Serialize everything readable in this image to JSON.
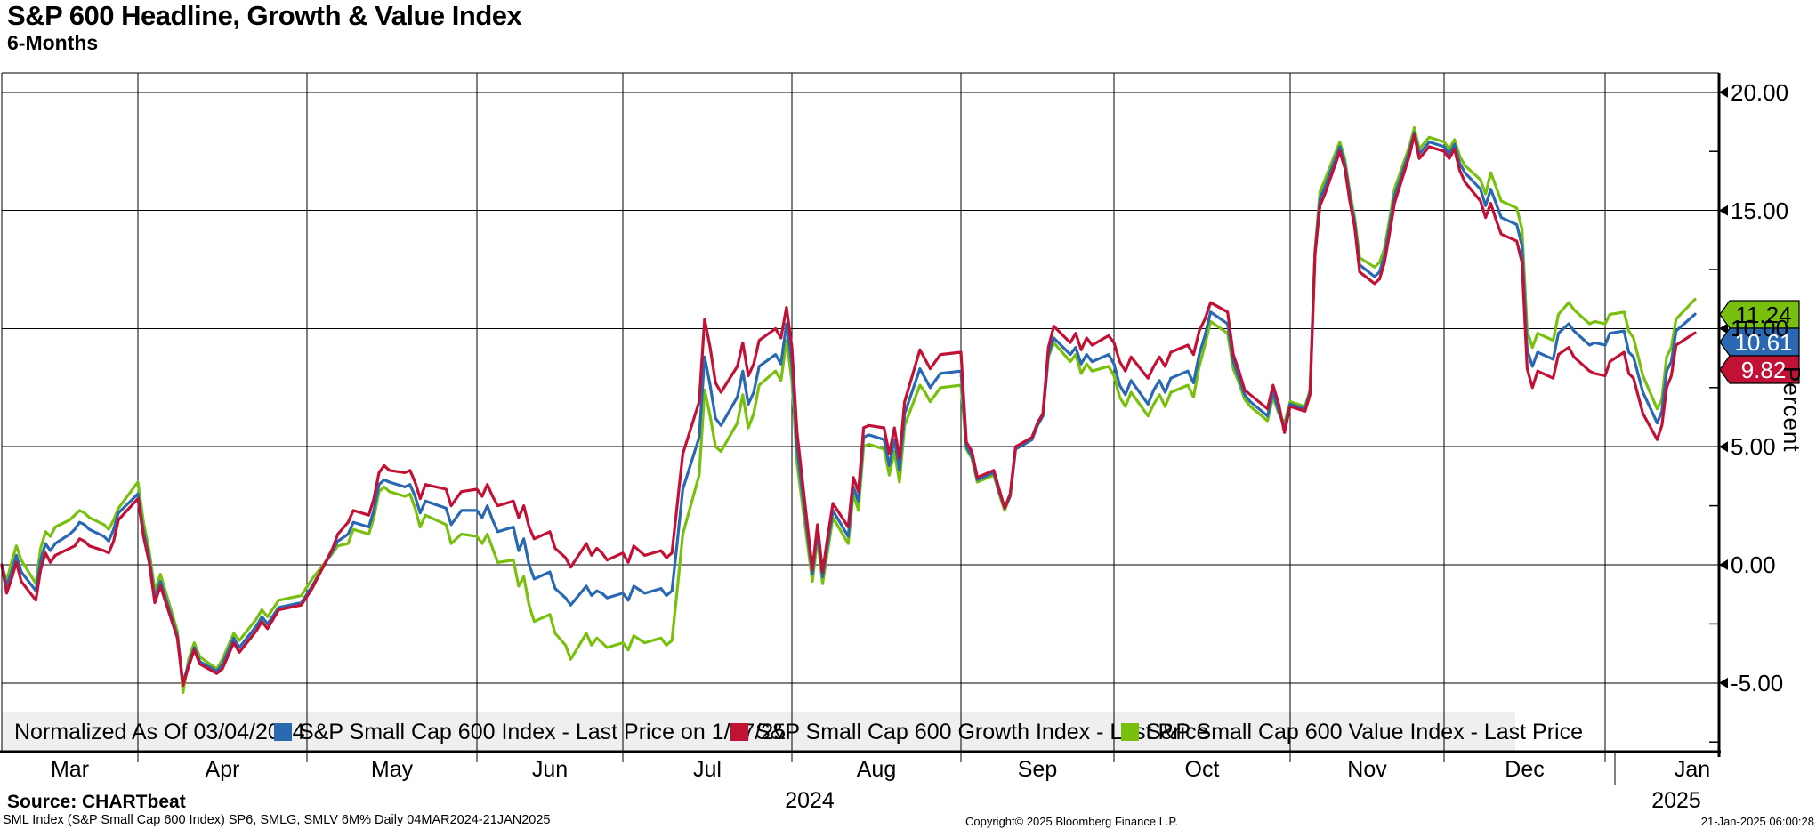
{
  "header": {
    "title": "S&P 600 Headline, Growth & Value Index",
    "subtitle": "6-Months"
  },
  "y_axis": {
    "unit_label": "Percent",
    "major_ticks": [
      {
        "label": "20.00",
        "value": 20
      },
      {
        "label": "15.00",
        "value": 15
      },
      {
        "label": "10.00",
        "value": 10
      },
      {
        "label": "5.00",
        "value": 5
      },
      {
        "label": "0.00",
        "value": 0
      },
      {
        "label": "-5.00",
        "value": -5
      }
    ],
    "minor_tick_values": [
      17.5,
      12.5,
      7.5,
      2.5,
      -2.5,
      -7.5
    ]
  },
  "x_axis": {
    "months": [
      "Mar",
      "Apr",
      "May",
      "Jun",
      "Jul",
      "Aug",
      "Sep",
      "Oct",
      "Nov",
      "Dec",
      "Jan"
    ],
    "years": [
      {
        "label": "2024"
      },
      {
        "label": "2025"
      }
    ]
  },
  "legend": {
    "note": "Normalized As Of 03/04/2024",
    "items": [
      {
        "label": "S&P Small Cap 600 Index - Last Price on 1/17/25",
        "color": "#2a69b2"
      },
      {
        "label": "S&P Small Cap 600 Growth Index - Last Price",
        "color": "#c11236"
      },
      {
        "label": "S&P Small Cap 600 Value Index - Last Price",
        "color": "#79c00e"
      }
    ]
  },
  "value_tags": [
    {
      "label": "11.24",
      "color": "#79c00e",
      "text_color": "#000000",
      "series": "value"
    },
    {
      "label": "10.61",
      "color": "#2a69b2",
      "text_color": "#ffffff",
      "series": "index"
    },
    {
      "label": "9.82",
      "color": "#c11236",
      "text_color": "#ffffff",
      "series": "growth"
    }
  ],
  "footer": {
    "source_label": "Source: CHARTbeat",
    "description": "SML Index (S&P Small Cap 600 Index) SP6, SMLG, SMLV 6M%  Daily 04MAR2024-21JAN2025",
    "copyright": "Copyright© 2025 Bloomberg Finance L.P.",
    "timestamp": "21-Jan-2025 06:00:28"
  },
  "chart_data": {
    "type": "line",
    "title": "S&P 600 Headline, Growth & Value Index",
    "subtitle": "6-Months",
    "ylabel": "Percent",
    "ylim": [
      -7.9,
      21.6
    ],
    "grid": true,
    "legend_position": "bottom",
    "normalized_as_of": "03/04/2024",
    "x_range": [
      "2024-03-04",
      "2025-01-21"
    ],
    "columns": [
      "date",
      "sp600_index_blue",
      "sp600_growth_red",
      "sp600_value_green"
    ],
    "series_meta": [
      {
        "name": "S&P Small Cap 600 Index - Last Price on 1/17/25",
        "color": "#2a69b2",
        "last": 10.61
      },
      {
        "name": "S&P Small Cap 600 Growth Index - Last Price",
        "color": "#c11236",
        "last": 9.82
      },
      {
        "name": "S&P Small Cap 600 Value Index - Last Price",
        "color": "#79c00e",
        "last": 11.24
      }
    ],
    "points": [
      [
        "2024-03-04",
        0,
        0,
        0
      ],
      [
        "2024-03-05",
        -0.9,
        -1.2,
        -0.7
      ],
      [
        "2024-03-06",
        -0.3,
        -0.6,
        0.1
      ],
      [
        "2024-03-07",
        0.4,
        0.1,
        0.8
      ],
      [
        "2024-03-08",
        -0.3,
        -0.7,
        0.2
      ],
      [
        "2024-03-11",
        -1.1,
        -1.5,
        -0.8
      ],
      [
        "2024-03-12",
        0.2,
        -0.2,
        0.7
      ],
      [
        "2024-03-13",
        0.9,
        0.5,
        1.4
      ],
      [
        "2024-03-14",
        0.6,
        0.1,
        1.2
      ],
      [
        "2024-03-15",
        0.9,
        0.4,
        1.6
      ],
      [
        "2024-03-18",
        1.3,
        0.7,
        1.9
      ],
      [
        "2024-03-19",
        1.5,
        0.8,
        2.1
      ],
      [
        "2024-03-20",
        1.8,
        1.1,
        2.3
      ],
      [
        "2024-03-21",
        1.7,
        1.0,
        2.2
      ],
      [
        "2024-03-22",
        1.5,
        0.8,
        2.0
      ],
      [
        "2024-03-25",
        1.2,
        0.6,
        1.7
      ],
      [
        "2024-03-26",
        1.0,
        0.5,
        1.5
      ],
      [
        "2024-03-27",
        1.5,
        1.0,
        1.9
      ],
      [
        "2024-03-28",
        2.2,
        1.9,
        2.4
      ],
      [
        "2024-04-01",
        3.0,
        2.8,
        3.5
      ],
      [
        "2024-04-02",
        1.4,
        1.2,
        1.8
      ],
      [
        "2024-04-03",
        0.3,
        0.1,
        0.6
      ],
      [
        "2024-04-04",
        -1.4,
        -1.6,
        -1.1
      ],
      [
        "2024-04-05",
        -0.7,
        -0.9,
        -0.4
      ],
      [
        "2024-04-08",
        -3.0,
        -3.1,
        -2.8
      ],
      [
        "2024-04-09",
        -5.0,
        -5.1,
        -5.4
      ],
      [
        "2024-04-10",
        -4.2,
        -4.3,
        -4.0
      ],
      [
        "2024-04-11",
        -3.5,
        -3.6,
        -3.3
      ],
      [
        "2024-04-12",
        -4.1,
        -4.2,
        -3.9
      ],
      [
        "2024-04-15",
        -4.5,
        -4.6,
        -4.4
      ],
      [
        "2024-04-16",
        -4.2,
        -4.4,
        -4.0
      ],
      [
        "2024-04-18",
        -3.1,
        -3.3,
        -2.9
      ],
      [
        "2024-04-19",
        -3.5,
        -3.7,
        -3.2
      ],
      [
        "2024-04-22",
        -2.6,
        -2.8,
        -2.3
      ],
      [
        "2024-04-23",
        -2.2,
        -2.4,
        -1.9
      ],
      [
        "2024-04-24",
        -2.5,
        -2.7,
        -2.2
      ],
      [
        "2024-04-26",
        -1.8,
        -1.9,
        -1.5
      ],
      [
        "2024-04-30",
        -1.6,
        -1.7,
        -1.3
      ],
      [
        "2024-05-02",
        -0.9,
        -1.0,
        -0.6
      ],
      [
        "2024-05-06",
        0.6,
        0.7,
        0.5
      ],
      [
        "2024-05-07",
        1.0,
        1.3,
        0.8
      ],
      [
        "2024-05-09",
        1.3,
        1.8,
        0.9
      ],
      [
        "2024-05-10",
        1.8,
        2.3,
        1.5
      ],
      [
        "2024-05-13",
        1.6,
        2.1,
        1.3
      ],
      [
        "2024-05-14",
        2.3,
        2.8,
        2.0
      ],
      [
        "2024-05-15",
        3.4,
        3.9,
        3.1
      ],
      [
        "2024-05-16",
        3.6,
        4.2,
        3.3
      ],
      [
        "2024-05-17",
        3.5,
        4.0,
        3.1
      ],
      [
        "2024-05-20",
        3.3,
        3.9,
        2.9
      ],
      [
        "2024-05-21",
        3.4,
        4.0,
        3.0
      ],
      [
        "2024-05-22",
        2.9,
        3.5,
        2.4
      ],
      [
        "2024-05-23",
        2.2,
        2.8,
        1.6
      ],
      [
        "2024-05-24",
        2.7,
        3.4,
        2.1
      ],
      [
        "2024-05-28",
        2.4,
        3.2,
        1.7
      ],
      [
        "2024-05-29",
        1.7,
        2.5,
        0.9
      ],
      [
        "2024-05-30",
        2.0,
        2.8,
        1.1
      ],
      [
        "2024-05-31",
        2.3,
        3.1,
        1.3
      ],
      [
        "2024-06-03",
        2.3,
        3.2,
        1.2
      ],
      [
        "2024-06-04",
        2.0,
        2.9,
        0.9
      ],
      [
        "2024-06-05",
        2.5,
        3.4,
        1.3
      ],
      [
        "2024-06-06",
        1.9,
        2.9,
        0.7
      ],
      [
        "2024-06-07",
        1.4,
        2.5,
        0.1
      ],
      [
        "2024-06-10",
        1.6,
        2.7,
        0.2
      ],
      [
        "2024-06-11",
        0.6,
        2.0,
        -0.9
      ],
      [
        "2024-06-12",
        1.1,
        2.5,
        -0.5
      ],
      [
        "2024-06-13",
        0.0,
        1.6,
        -1.7
      ],
      [
        "2024-06-14",
        -0.6,
        1.1,
        -2.4
      ],
      [
        "2024-06-17",
        -0.3,
        1.4,
        -2.1
      ],
      [
        "2024-06-18",
        -1.0,
        0.7,
        -2.9
      ],
      [
        "2024-06-20",
        -1.4,
        0.3,
        -3.4
      ],
      [
        "2024-06-21",
        -1.7,
        -0.1,
        -4.0
      ],
      [
        "2024-06-24",
        -0.9,
        0.9,
        -2.9
      ],
      [
        "2024-06-25",
        -1.3,
        0.4,
        -3.4
      ],
      [
        "2024-06-26",
        -1.1,
        0.7,
        -3.1
      ],
      [
        "2024-06-27",
        -1.2,
        0.5,
        -3.3
      ],
      [
        "2024-06-28",
        -1.4,
        0.2,
        -3.5
      ],
      [
        "2024-07-01",
        -1.2,
        0.5,
        -3.3
      ],
      [
        "2024-07-02",
        -1.5,
        0.1,
        -3.6
      ],
      [
        "2024-07-03",
        -0.9,
        0.8,
        -3.0
      ],
      [
        "2024-07-05",
        -1.2,
        0.4,
        -3.3
      ],
      [
        "2024-07-08",
        -1.0,
        0.6,
        -3.1
      ],
      [
        "2024-07-09",
        -1.3,
        0.3,
        -3.4
      ],
      [
        "2024-07-10",
        -1.1,
        0.5,
        -3.2
      ],
      [
        "2024-07-11",
        1.0,
        2.6,
        -1.0
      ],
      [
        "2024-07-12",
        3.2,
        4.7,
        1.3
      ],
      [
        "2024-07-15",
        5.4,
        6.9,
        3.8
      ],
      [
        "2024-07-16",
        8.8,
        10.4,
        7.4
      ],
      [
        "2024-07-17",
        7.6,
        9.2,
        6.3
      ],
      [
        "2024-07-18",
        6.2,
        7.7,
        5.0
      ],
      [
        "2024-07-19",
        5.9,
        7.3,
        4.8
      ],
      [
        "2024-07-22",
        7.1,
        8.4,
        6.0
      ],
      [
        "2024-07-23",
        8.2,
        9.4,
        7.2
      ],
      [
        "2024-07-24",
        6.8,
        8.0,
        5.8
      ],
      [
        "2024-07-25",
        7.3,
        8.5,
        6.4
      ],
      [
        "2024-07-26",
        8.4,
        9.5,
        7.6
      ],
      [
        "2024-07-29",
        8.9,
        10.0,
        8.2
      ],
      [
        "2024-07-30",
        8.5,
        9.6,
        7.8
      ],
      [
        "2024-07-31",
        10.2,
        10.9,
        9.5
      ],
      [
        "2024-08-01",
        8.5,
        9.2,
        7.8
      ],
      [
        "2024-08-02",
        4.9,
        5.6,
        4.3
      ],
      [
        "2024-08-05",
        -0.4,
        -0.2,
        -0.7
      ],
      [
        "2024-08-06",
        1.4,
        1.7,
        1.1
      ],
      [
        "2024-08-07",
        -0.5,
        -0.3,
        -0.8
      ],
      [
        "2024-08-08",
        0.9,
        1.2,
        0.6
      ],
      [
        "2024-08-09",
        2.3,
        2.6,
        2.0
      ],
      [
        "2024-08-12",
        1.2,
        1.6,
        0.9
      ],
      [
        "2024-08-13",
        3.3,
        3.7,
        3.0
      ],
      [
        "2024-08-14",
        2.7,
        3.1,
        2.3
      ],
      [
        "2024-08-15",
        5.4,
        5.8,
        5.0
      ],
      [
        "2024-08-16",
        5.5,
        5.9,
        5.1
      ],
      [
        "2024-08-19",
        5.3,
        5.8,
        4.9
      ],
      [
        "2024-08-20",
        4.2,
        4.7,
        3.8
      ],
      [
        "2024-08-21",
        5.3,
        5.8,
        4.8
      ],
      [
        "2024-08-22",
        4.0,
        4.5,
        3.5
      ],
      [
        "2024-08-23",
        6.4,
        6.9,
        5.9
      ],
      [
        "2024-08-26",
        8.3,
        9.1,
        7.6
      ],
      [
        "2024-08-27",
        7.9,
        8.7,
        7.3
      ],
      [
        "2024-08-28",
        7.5,
        8.3,
        6.9
      ],
      [
        "2024-08-29",
        7.8,
        8.6,
        7.2
      ],
      [
        "2024-08-30",
        8.1,
        8.9,
        7.5
      ],
      [
        "2024-09-03",
        8.2,
        9.0,
        7.6
      ],
      [
        "2024-09-04",
        5.0,
        5.2,
        4.9
      ],
      [
        "2024-09-05",
        4.6,
        4.8,
        4.5
      ],
      [
        "2024-09-06",
        3.6,
        3.7,
        3.5
      ],
      [
        "2024-09-09",
        3.9,
        4.0,
        3.8
      ],
      [
        "2024-09-10",
        3.1,
        3.2,
        3.0
      ],
      [
        "2024-09-11",
        2.4,
        2.4,
        2.3
      ],
      [
        "2024-09-12",
        2.9,
        3.0,
        2.9
      ],
      [
        "2024-09-13",
        4.9,
        5.0,
        4.9
      ],
      [
        "2024-09-16",
        5.3,
        5.4,
        5.3
      ],
      [
        "2024-09-17",
        5.9,
        6.0,
        5.9
      ],
      [
        "2024-09-18",
        6.3,
        6.4,
        6.3
      ],
      [
        "2024-09-19",
        8.9,
        9.2,
        8.8
      ],
      [
        "2024-09-20",
        9.6,
        10.1,
        9.4
      ],
      [
        "2024-09-23",
        8.9,
        9.4,
        8.6
      ],
      [
        "2024-09-24",
        9.2,
        9.8,
        8.9
      ],
      [
        "2024-09-25",
        8.5,
        9.1,
        8.1
      ],
      [
        "2024-09-26",
        8.9,
        9.6,
        8.5
      ],
      [
        "2024-09-27",
        8.6,
        9.3,
        8.2
      ],
      [
        "2024-09-30",
        8.9,
        9.7,
        8.4
      ],
      [
        "2024-10-01",
        8.5,
        9.4,
        8.0
      ],
      [
        "2024-10-02",
        7.6,
        8.6,
        7.1
      ],
      [
        "2024-10-03",
        7.2,
        8.2,
        6.7
      ],
      [
        "2024-10-04",
        7.8,
        8.8,
        7.3
      ],
      [
        "2024-10-07",
        6.8,
        7.9,
        6.3
      ],
      [
        "2024-10-08",
        7.4,
        8.4,
        6.8
      ],
      [
        "2024-10-09",
        7.8,
        8.8,
        7.2
      ],
      [
        "2024-10-10",
        7.3,
        8.4,
        6.7
      ],
      [
        "2024-10-11",
        7.9,
        9.0,
        7.3
      ],
      [
        "2024-10-14",
        8.2,
        9.3,
        7.6
      ],
      [
        "2024-10-15",
        7.7,
        8.9,
        7.1
      ],
      [
        "2024-10-16",
        8.9,
        9.9,
        8.4
      ],
      [
        "2024-10-17",
        9.7,
        10.4,
        9.3
      ],
      [
        "2024-10-18",
        10.7,
        11.1,
        10.3
      ],
      [
        "2024-10-21",
        10.2,
        10.7,
        9.8
      ],
      [
        "2024-10-22",
        8.6,
        8.9,
        8.3
      ],
      [
        "2024-10-23",
        7.9,
        8.2,
        7.7
      ],
      [
        "2024-10-24",
        7.2,
        7.4,
        7.0
      ],
      [
        "2024-10-25",
        6.9,
        7.2,
        6.7
      ],
      [
        "2024-10-28",
        6.3,
        6.6,
        6.1
      ],
      [
        "2024-10-29",
        7.3,
        7.6,
        7.1
      ],
      [
        "2024-10-30",
        6.5,
        6.8,
        6.4
      ],
      [
        "2024-10-31",
        5.8,
        5.6,
        6.0
      ],
      [
        "2024-11-01",
        6.8,
        6.7,
        6.9
      ],
      [
        "2024-11-04",
        6.6,
        6.5,
        6.7
      ],
      [
        "2024-11-05",
        7.3,
        7.2,
        7.4
      ],
      [
        "2024-11-06",
        13.2,
        13.1,
        13.3
      ],
      [
        "2024-11-07",
        15.5,
        15.2,
        15.8
      ],
      [
        "2024-11-08",
        16.0,
        15.7,
        16.3
      ],
      [
        "2024-11-11",
        17.7,
        17.5,
        17.9
      ],
      [
        "2024-11-12",
        17.0,
        16.8,
        17.2
      ],
      [
        "2024-11-13",
        15.6,
        15.4,
        15.8
      ],
      [
        "2024-11-14",
        14.5,
        14.3,
        14.7
      ],
      [
        "2024-11-15",
        12.7,
        12.4,
        13.0
      ],
      [
        "2024-11-18",
        12.2,
        11.9,
        12.6
      ],
      [
        "2024-11-19",
        12.4,
        12.1,
        12.8
      ],
      [
        "2024-11-20",
        13.1,
        12.8,
        13.4
      ],
      [
        "2024-11-21",
        14.3,
        14.0,
        14.6
      ],
      [
        "2024-11-22",
        15.6,
        15.3,
        15.9
      ],
      [
        "2024-11-25",
        17.5,
        17.3,
        17.7
      ],
      [
        "2024-11-26",
        18.3,
        18.2,
        18.5
      ],
      [
        "2024-11-27",
        17.4,
        17.2,
        17.6
      ],
      [
        "2024-11-29",
        17.9,
        17.7,
        18.1
      ],
      [
        "2024-12-02",
        17.7,
        17.5,
        17.9
      ],
      [
        "2024-12-03",
        17.4,
        17.2,
        17.6
      ],
      [
        "2024-12-04",
        17.8,
        17.6,
        18.0
      ],
      [
        "2024-12-05",
        17.0,
        16.7,
        17.3
      ],
      [
        "2024-12-06",
        16.6,
        16.2,
        16.9
      ],
      [
        "2024-12-09",
        15.9,
        15.4,
        16.3
      ],
      [
        "2024-12-10",
        15.2,
        14.7,
        15.7
      ],
      [
        "2024-12-11",
        15.9,
        15.3,
        16.6
      ],
      [
        "2024-12-12",
        15.3,
        14.6,
        16.0
      ],
      [
        "2024-12-13",
        14.7,
        14.0,
        15.4
      ],
      [
        "2024-12-16",
        14.4,
        13.7,
        15.1
      ],
      [
        "2024-12-17",
        13.5,
        12.8,
        14.2
      ],
      [
        "2024-12-18",
        9.1,
        8.3,
        9.9
      ],
      [
        "2024-12-19",
        8.4,
        7.5,
        9.2
      ],
      [
        "2024-12-20",
        9.0,
        8.2,
        9.8
      ],
      [
        "2024-12-23",
        8.7,
        7.9,
        9.5
      ],
      [
        "2024-12-24",
        9.8,
        8.9,
        10.6
      ],
      [
        "2024-12-26",
        10.2,
        9.2,
        11.1
      ],
      [
        "2024-12-27",
        9.9,
        8.8,
        10.8
      ],
      [
        "2024-12-30",
        9.3,
        8.2,
        10.2
      ],
      [
        "2024-12-31",
        9.4,
        8.1,
        10.3
      ],
      [
        "2025-01-02",
        9.3,
        8.0,
        10.2
      ],
      [
        "2025-01-03",
        9.8,
        8.6,
        10.6
      ],
      [
        "2025-01-06",
        9.9,
        9.0,
        10.7
      ],
      [
        "2025-01-07",
        9.0,
        8.1,
        9.9
      ],
      [
        "2025-01-08",
        8.8,
        7.9,
        9.6
      ],
      [
        "2025-01-10",
        7.3,
        6.4,
        8.0
      ],
      [
        "2025-01-13",
        6.0,
        5.3,
        6.6
      ],
      [
        "2025-01-14",
        6.5,
        5.9,
        7.0
      ],
      [
        "2025-01-15",
        8.2,
        7.5,
        8.8
      ],
      [
        "2025-01-16",
        8.6,
        8.0,
        9.2
      ],
      [
        "2025-01-17",
        9.9,
        9.3,
        10.4
      ],
      [
        "2025-01-21",
        10.61,
        9.82,
        11.24
      ]
    ]
  }
}
